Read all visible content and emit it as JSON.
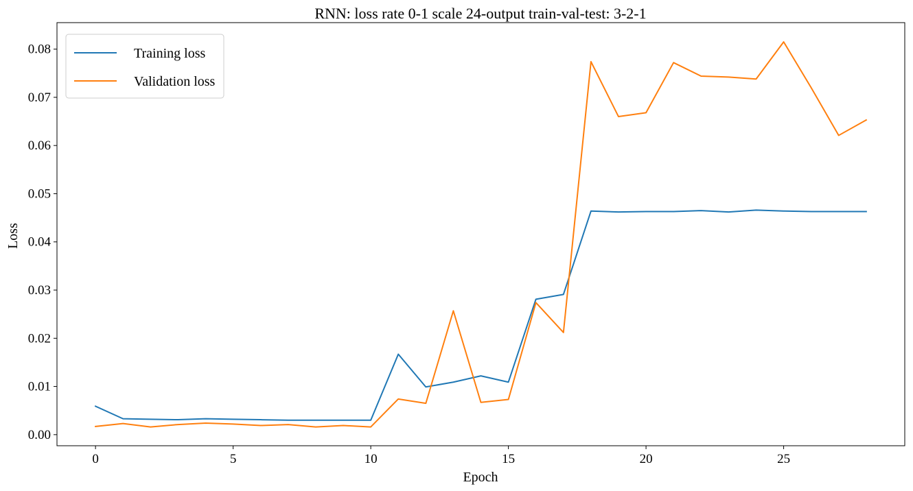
{
  "chart_data": {
    "type": "line",
    "title": "RNN: loss rate 0-1 scale 24-output train-val-test: 3-2-1",
    "xlabel": "Epoch",
    "ylabel": "Loss",
    "xlim": [
      -1.4,
      29.4
    ],
    "ylim": [
      -0.0023,
      0.0855
    ],
    "xticks": [
      0,
      5,
      10,
      15,
      20,
      25
    ],
    "xtick_labels": [
      "0",
      "5",
      "10",
      "15",
      "20",
      "25"
    ],
    "yticks": [
      0.0,
      0.01,
      0.02,
      0.03,
      0.04,
      0.05,
      0.06,
      0.07,
      0.08
    ],
    "ytick_labels": [
      "0.00",
      "0.01",
      "0.02",
      "0.03",
      "0.04",
      "0.05",
      "0.06",
      "0.07",
      "0.08"
    ],
    "grid": false,
    "legend_position": "top-left",
    "x": [
      0,
      1,
      2,
      3,
      4,
      5,
      6,
      7,
      8,
      9,
      10,
      11,
      12,
      13,
      14,
      15,
      16,
      17,
      18,
      19,
      20,
      21,
      22,
      23,
      24,
      25,
      26,
      27,
      28
    ],
    "series": [
      {
        "name": "Training loss",
        "color": "#1f77b4",
        "values": [
          0.0059,
          0.0033,
          0.0032,
          0.0031,
          0.0033,
          0.0032,
          0.0031,
          0.003,
          0.003,
          0.003,
          0.003,
          0.0167,
          0.0099,
          0.0109,
          0.0122,
          0.0109,
          0.0281,
          0.0291,
          0.0464,
          0.0462,
          0.0463,
          0.0463,
          0.0465,
          0.0462,
          0.0466,
          0.0464,
          0.0463,
          0.0463,
          0.0463
        ]
      },
      {
        "name": "Validation loss",
        "color": "#ff7f0e",
        "values": [
          0.0017,
          0.0023,
          0.0016,
          0.0021,
          0.0024,
          0.0022,
          0.0019,
          0.0021,
          0.0016,
          0.0019,
          0.0016,
          0.0074,
          0.0065,
          0.0257,
          0.0067,
          0.0073,
          0.0274,
          0.0212,
          0.0774,
          0.066,
          0.0668,
          0.0772,
          0.0744,
          0.0742,
          0.0738,
          0.0815,
          0.072,
          0.0621,
          0.0653
        ]
      }
    ]
  }
}
